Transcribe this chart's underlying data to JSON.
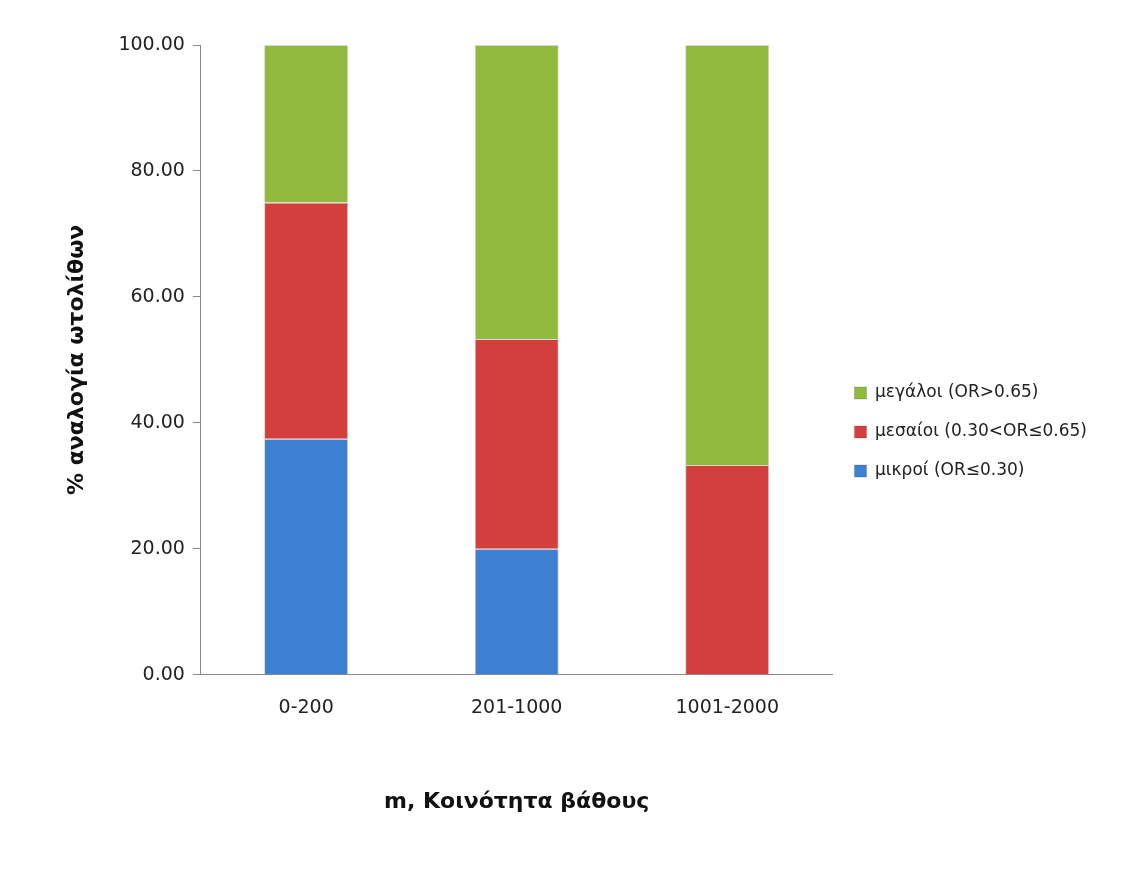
{
  "chart_data": {
    "type": "bar",
    "stacked": true,
    "xlabel": "m, Κοινότητα βάθους",
    "ylabel": "% αναλογία ωτολίθων",
    "categories": [
      "0-200",
      "201-1000",
      "1001-2000"
    ],
    "series": [
      {
        "name": "μικροί (OR≤0.30)",
        "color": "#3d7fd3",
        "values": [
          37.5,
          20,
          0
        ]
      },
      {
        "name": "μεσαίοι (0.30<OR≤0.65)",
        "color": "#d23f3d",
        "values": [
          37.5,
          33.3,
          33.3
        ]
      },
      {
        "name": "μεγάλοι (OR>0.65)",
        "color": "#8fba3e",
        "values": [
          25,
          46.7,
          66.7
        ]
      }
    ],
    "ylim": [
      0,
      100
    ],
    "yticks": [
      {
        "value": 0,
        "label": "0.00"
      },
      {
        "value": 20,
        "label": "20.00"
      },
      {
        "value": 40,
        "label": "40.00"
      },
      {
        "value": 60,
        "label": "60.00"
      },
      {
        "value": 80,
        "label": "80.00"
      },
      {
        "value": 100,
        "label": "100.00"
      }
    ],
    "grid": false,
    "legend": "right"
  }
}
